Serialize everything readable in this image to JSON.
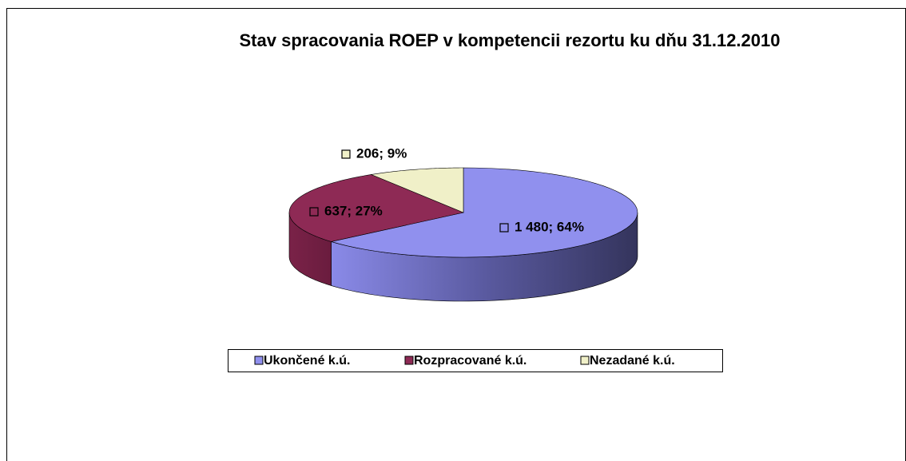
{
  "chart_data": {
    "type": "pie",
    "title": "Stav spracovania ROEP v kompetencii rezortu ku dňu 31.12.2010",
    "categories": [
      "Ukončené k.ú.",
      "Rozpracované k.ú.",
      "Nezadané k.ú."
    ],
    "values": [
      1480,
      637,
      206
    ],
    "value_labels": [
      "1 480; 64%",
      "637; 27%",
      "206; 9%"
    ],
    "colors": [
      "#9090ee",
      "#8e2a55",
      "#f0f0c8"
    ],
    "legend": "bottom"
  }
}
